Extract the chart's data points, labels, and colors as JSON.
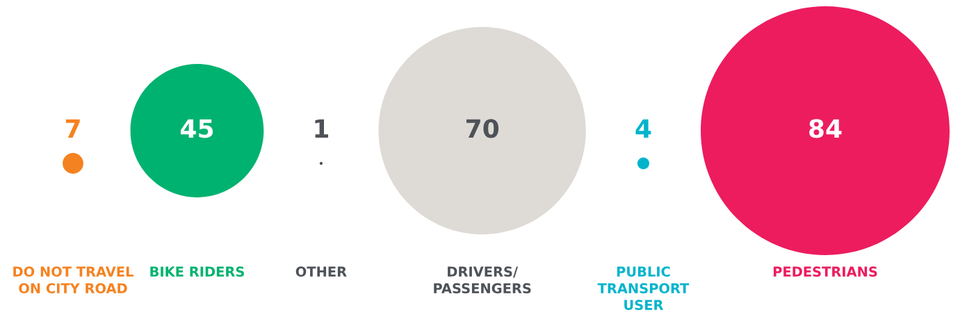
{
  "chart_data": {
    "type": "other",
    "categories": [
      "DO NOT TRAVEL\nON CITY ROAD",
      "BIKE RIDERS",
      "OTHER",
      "DRIVERS/\nPASSENGERS",
      "PUBLIC\nTRANSPORT\nUSER",
      "PEDESTRIANS"
    ],
    "values": [
      7,
      45,
      1,
      70,
      4,
      84
    ],
    "colors": [
      "#f58220",
      "#00b26f",
      "#4d5258",
      "#dedbd6",
      "#00b4cc",
      "#ec1c5f"
    ],
    "data_labels": true
  }
}
